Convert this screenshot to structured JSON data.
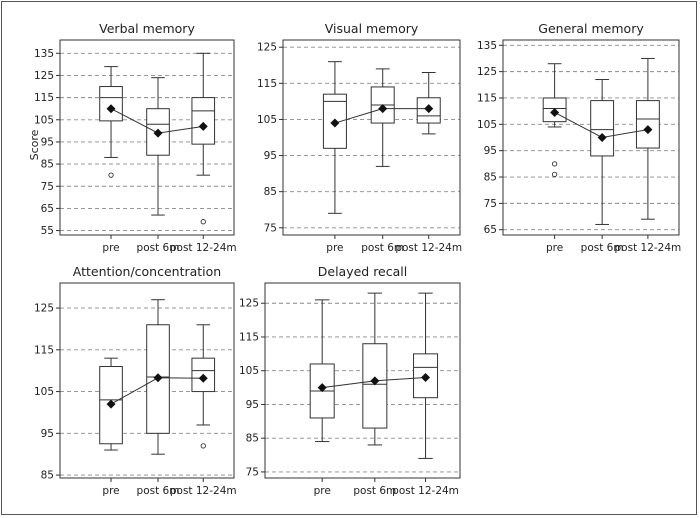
{
  "figure": {
    "y_axis_label": "Score"
  },
  "chart_data": [
    {
      "type": "box",
      "title": "Verbal memory",
      "xlabel": "",
      "ylabel": "Score",
      "categories": [
        "pre",
        "post 6m",
        "post 12-24m"
      ],
      "ylim": [
        53,
        141
      ],
      "yticks": [
        55,
        65,
        75,
        85,
        95,
        105,
        115,
        125,
        135
      ],
      "grid": true,
      "boxes": [
        {
          "category": "pre",
          "whisker_low": 88,
          "q1": 104.5,
          "median": 115,
          "q3": 120,
          "whisker_high": 129,
          "mean": 110,
          "outliers": [
            80
          ]
        },
        {
          "category": "post 6m",
          "whisker_low": 62,
          "q1": 89,
          "median": 103,
          "q3": 110,
          "whisker_high": 124,
          "mean": 99,
          "outliers": []
        },
        {
          "category": "post 12-24m",
          "whisker_low": 80,
          "q1": 94,
          "median": 109,
          "q3": 115,
          "whisker_high": 135,
          "mean": 102,
          "outliers": [
            59
          ]
        }
      ]
    },
    {
      "type": "box",
      "title": "Visual memory",
      "xlabel": "",
      "ylabel": "",
      "categories": [
        "pre",
        "post 6m",
        "post 12-24m"
      ],
      "ylim": [
        73,
        127
      ],
      "yticks": [
        75,
        85,
        95,
        105,
        115,
        125
      ],
      "grid": true,
      "boxes": [
        {
          "category": "pre",
          "whisker_low": 79,
          "q1": 97,
          "median": 110,
          "q3": 112,
          "whisker_high": 121,
          "mean": 104,
          "outliers": []
        },
        {
          "category": "post 6m",
          "whisker_low": 92,
          "q1": 104,
          "median": 109,
          "q3": 114,
          "whisker_high": 119,
          "mean": 108,
          "outliers": []
        },
        {
          "category": "post 12-24m",
          "whisker_low": 101,
          "q1": 104,
          "median": 106,
          "q3": 111,
          "whisker_high": 118,
          "mean": 108,
          "outliers": []
        }
      ]
    },
    {
      "type": "box",
      "title": "General memory",
      "xlabel": "",
      "ylabel": "",
      "categories": [
        "pre",
        "post 6m",
        "post 12-24m"
      ],
      "ylim": [
        63,
        137
      ],
      "yticks": [
        65,
        75,
        85,
        95,
        105,
        115,
        125,
        135
      ],
      "grid": true,
      "boxes": [
        {
          "category": "pre",
          "whisker_low": 104,
          "q1": 106,
          "median": 111,
          "q3": 115,
          "whisker_high": 128,
          "mean": 109.5,
          "outliers": [
            86,
            90
          ]
        },
        {
          "category": "post 6m",
          "whisker_low": 67,
          "q1": 93,
          "median": 103,
          "q3": 114,
          "whisker_high": 122,
          "mean": 100,
          "outliers": []
        },
        {
          "category": "post 12-24m",
          "whisker_low": 69,
          "q1": 96,
          "median": 107,
          "q3": 114,
          "whisker_high": 130,
          "mean": 103,
          "outliers": []
        }
      ]
    },
    {
      "type": "box",
      "title": "Attention/concentration",
      "xlabel": "",
      "ylabel": "",
      "categories": [
        "pre",
        "post 6m",
        "post 12-24m"
      ],
      "ylim": [
        84.3,
        131
      ],
      "yticks": [
        85,
        95,
        105,
        115,
        125
      ],
      "grid": true,
      "boxes": [
        {
          "category": "pre",
          "whisker_low": 91,
          "q1": 92.5,
          "median": 103,
          "q3": 111,
          "whisker_high": 113,
          "mean": 102,
          "outliers": []
        },
        {
          "category": "post 6m",
          "whisker_low": 90,
          "q1": 95,
          "median": 108.5,
          "q3": 121,
          "whisker_high": 127,
          "mean": 108.3,
          "outliers": []
        },
        {
          "category": "post 12-24m",
          "whisker_low": 97,
          "q1": 105,
          "median": 110,
          "q3": 113,
          "whisker_high": 121,
          "mean": 108.2,
          "outliers": [
            92
          ]
        }
      ]
    },
    {
      "type": "box",
      "title": "Delayed recall",
      "xlabel": "",
      "ylabel": "",
      "categories": [
        "pre",
        "post 6m",
        "post 12-24m"
      ],
      "ylim": [
        73.2,
        131
      ],
      "yticks": [
        75,
        85,
        95,
        105,
        115,
        125
      ],
      "grid": true,
      "boxes": [
        {
          "category": "pre",
          "whisker_low": 84,
          "q1": 91,
          "median": 99,
          "q3": 107,
          "whisker_high": 126,
          "mean": 100,
          "outliers": []
        },
        {
          "category": "post 6m",
          "whisker_low": 83,
          "q1": 88,
          "median": 101,
          "q3": 113,
          "whisker_high": 128,
          "mean": 102,
          "outliers": []
        },
        {
          "category": "post 12-24m",
          "whisker_low": 79,
          "q1": 97,
          "median": 106,
          "q3": 110,
          "whisker_high": 128,
          "mean": 103,
          "outliers": []
        }
      ]
    }
  ]
}
